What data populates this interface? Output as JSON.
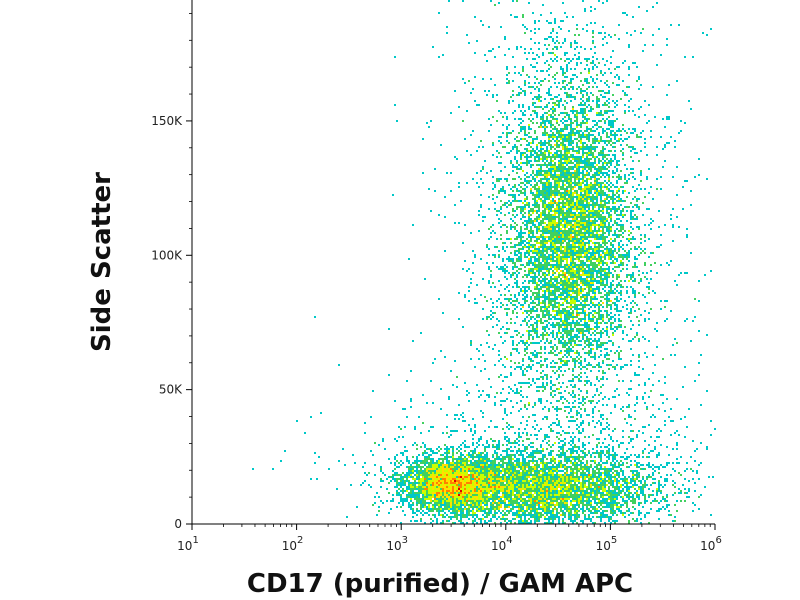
{
  "chart_data": {
    "type": "density-scatter",
    "xlabel": "CD17 (purified) / GAM APC",
    "ylabel": "Side Scatter",
    "x_scale": "log",
    "xlim": [
      10,
      1000000
    ],
    "ylim": [
      0,
      195000
    ],
    "x_ticks": [
      {
        "value": 10,
        "base": "10",
        "exp": "1"
      },
      {
        "value": 100,
        "base": "10",
        "exp": "2"
      },
      {
        "value": 1000,
        "base": "10",
        "exp": "3"
      },
      {
        "value": 10000,
        "base": "10",
        "exp": "4"
      },
      {
        "value": 100000,
        "base": "10",
        "exp": "5"
      },
      {
        "value": 1000000,
        "base": "10",
        "exp": "6"
      }
    ],
    "y_ticks": [
      {
        "value": 0,
        "label": "0"
      },
      {
        "value": 50000,
        "label": "50K"
      },
      {
        "value": 100000,
        "label": "100K"
      },
      {
        "value": 150000,
        "label": "150K"
      }
    ],
    "grid": false,
    "color_scale": [
      "#0000b4",
      "#0050ff",
      "#00c8c8",
      "#40d060",
      "#c8ff00",
      "#ffe000",
      "#ff8000",
      "#e00000"
    ],
    "populations": [
      {
        "center_x": 40000,
        "center_y": 108000,
        "spread_log_x": 0.28,
        "spread_y": 27000
      },
      {
        "center_x": 3000,
        "center_y": 15000,
        "spread_log_x": 0.22,
        "spread_y": 5000
      },
      {
        "center_x": 20000,
        "center_y": 13000,
        "spread_log_x": 0.55,
        "spread_y": 7000
      }
    ]
  }
}
